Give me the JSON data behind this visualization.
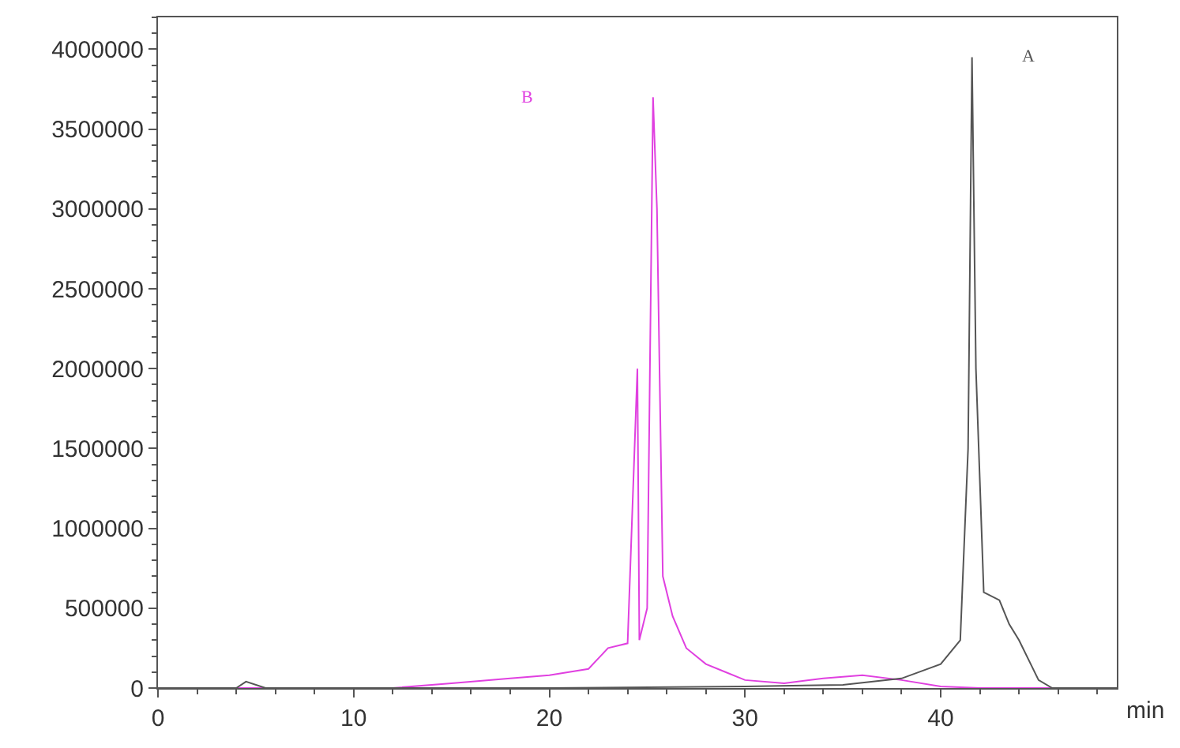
{
  "chart_data": {
    "type": "line",
    "xlabel": "min",
    "xlim": [
      0,
      49
    ],
    "ylim": [
      0,
      4200000
    ],
    "xticks": [
      0,
      10,
      20,
      30,
      40
    ],
    "yticks": [
      0,
      500000,
      1000000,
      1500000,
      2000000,
      2500000,
      3000000,
      3500000,
      4000000
    ],
    "legend": false,
    "marker": "none",
    "line_style": "solid",
    "series": [
      {
        "name": "B",
        "color": "#e040e0",
        "x": [
          0,
          4,
          5,
          8,
          12,
          15,
          18,
          20,
          22,
          23,
          24,
          24.5,
          24.6,
          25,
          25.3,
          25.5,
          25.8,
          26.3,
          27,
          28,
          29,
          30,
          32,
          34,
          36,
          38,
          40,
          42,
          45,
          49
        ],
        "values": [
          0,
          0,
          0,
          0,
          0,
          30000,
          60000,
          80000,
          120000,
          250000,
          280000,
          2000000,
          300000,
          500000,
          3700000,
          3000000,
          700000,
          450000,
          250000,
          150000,
          100000,
          50000,
          30000,
          60000,
          80000,
          50000,
          10000,
          0,
          0,
          0
        ]
      },
      {
        "name": "A",
        "color": "#555555",
        "x": [
          0,
          4,
          4.5,
          5.5,
          20,
          30,
          35,
          38,
          40,
          41,
          41.4,
          41.6,
          41.8,
          42.2,
          43,
          43.5,
          44,
          45,
          45.7,
          49
        ],
        "values": [
          0,
          0,
          40000,
          0,
          0,
          10000,
          20000,
          60000,
          150000,
          300000,
          1500000,
          3950000,
          2000000,
          600000,
          550000,
          400000,
          300000,
          50000,
          0,
          0
        ]
      }
    ]
  }
}
